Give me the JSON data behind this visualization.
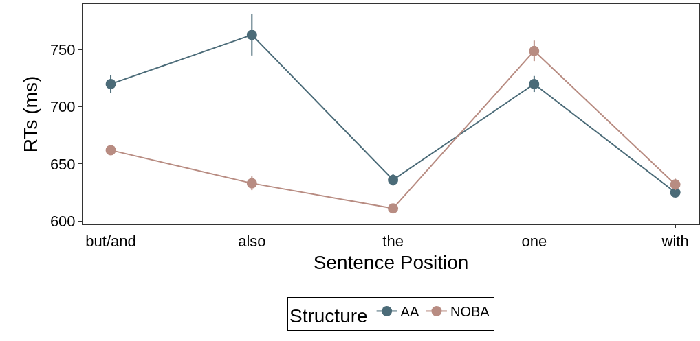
{
  "chart_data": {
    "type": "line",
    "xlabel": "Sentence Position",
    "ylabel": "RTs (ms)",
    "legend_title": "Structure",
    "categories": [
      "but/and",
      "also",
      "the",
      "one",
      "with"
    ],
    "series": [
      {
        "name": "AA",
        "color": "#4b6b78",
        "values": [
          720,
          763,
          636,
          720,
          625
        ],
        "errors": [
          8,
          18,
          5,
          7,
          4
        ]
      },
      {
        "name": "NOBA",
        "color": "#b88c82",
        "values": [
          662,
          633,
          611,
          749,
          632
        ],
        "errors": [
          4,
          6,
          4,
          9,
          5
        ]
      }
    ],
    "ylim": [
      597,
      790
    ],
    "yticks": [
      600,
      650,
      700,
      750
    ],
    "grid": false,
    "legend": "bottom",
    "marker": "circle",
    "line_style": "solid"
  }
}
